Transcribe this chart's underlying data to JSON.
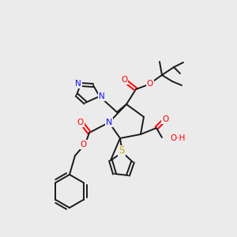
{
  "background_color": "#ebebeb",
  "bond_color": "#1a1a1a",
  "atom_colors": {
    "N": "#1414ff",
    "O": "#ff0000",
    "S": "#ccaa00",
    "C": "#1a1a1a"
  },
  "figsize": [
    3.0,
    3.0
  ],
  "dpi": 100
}
